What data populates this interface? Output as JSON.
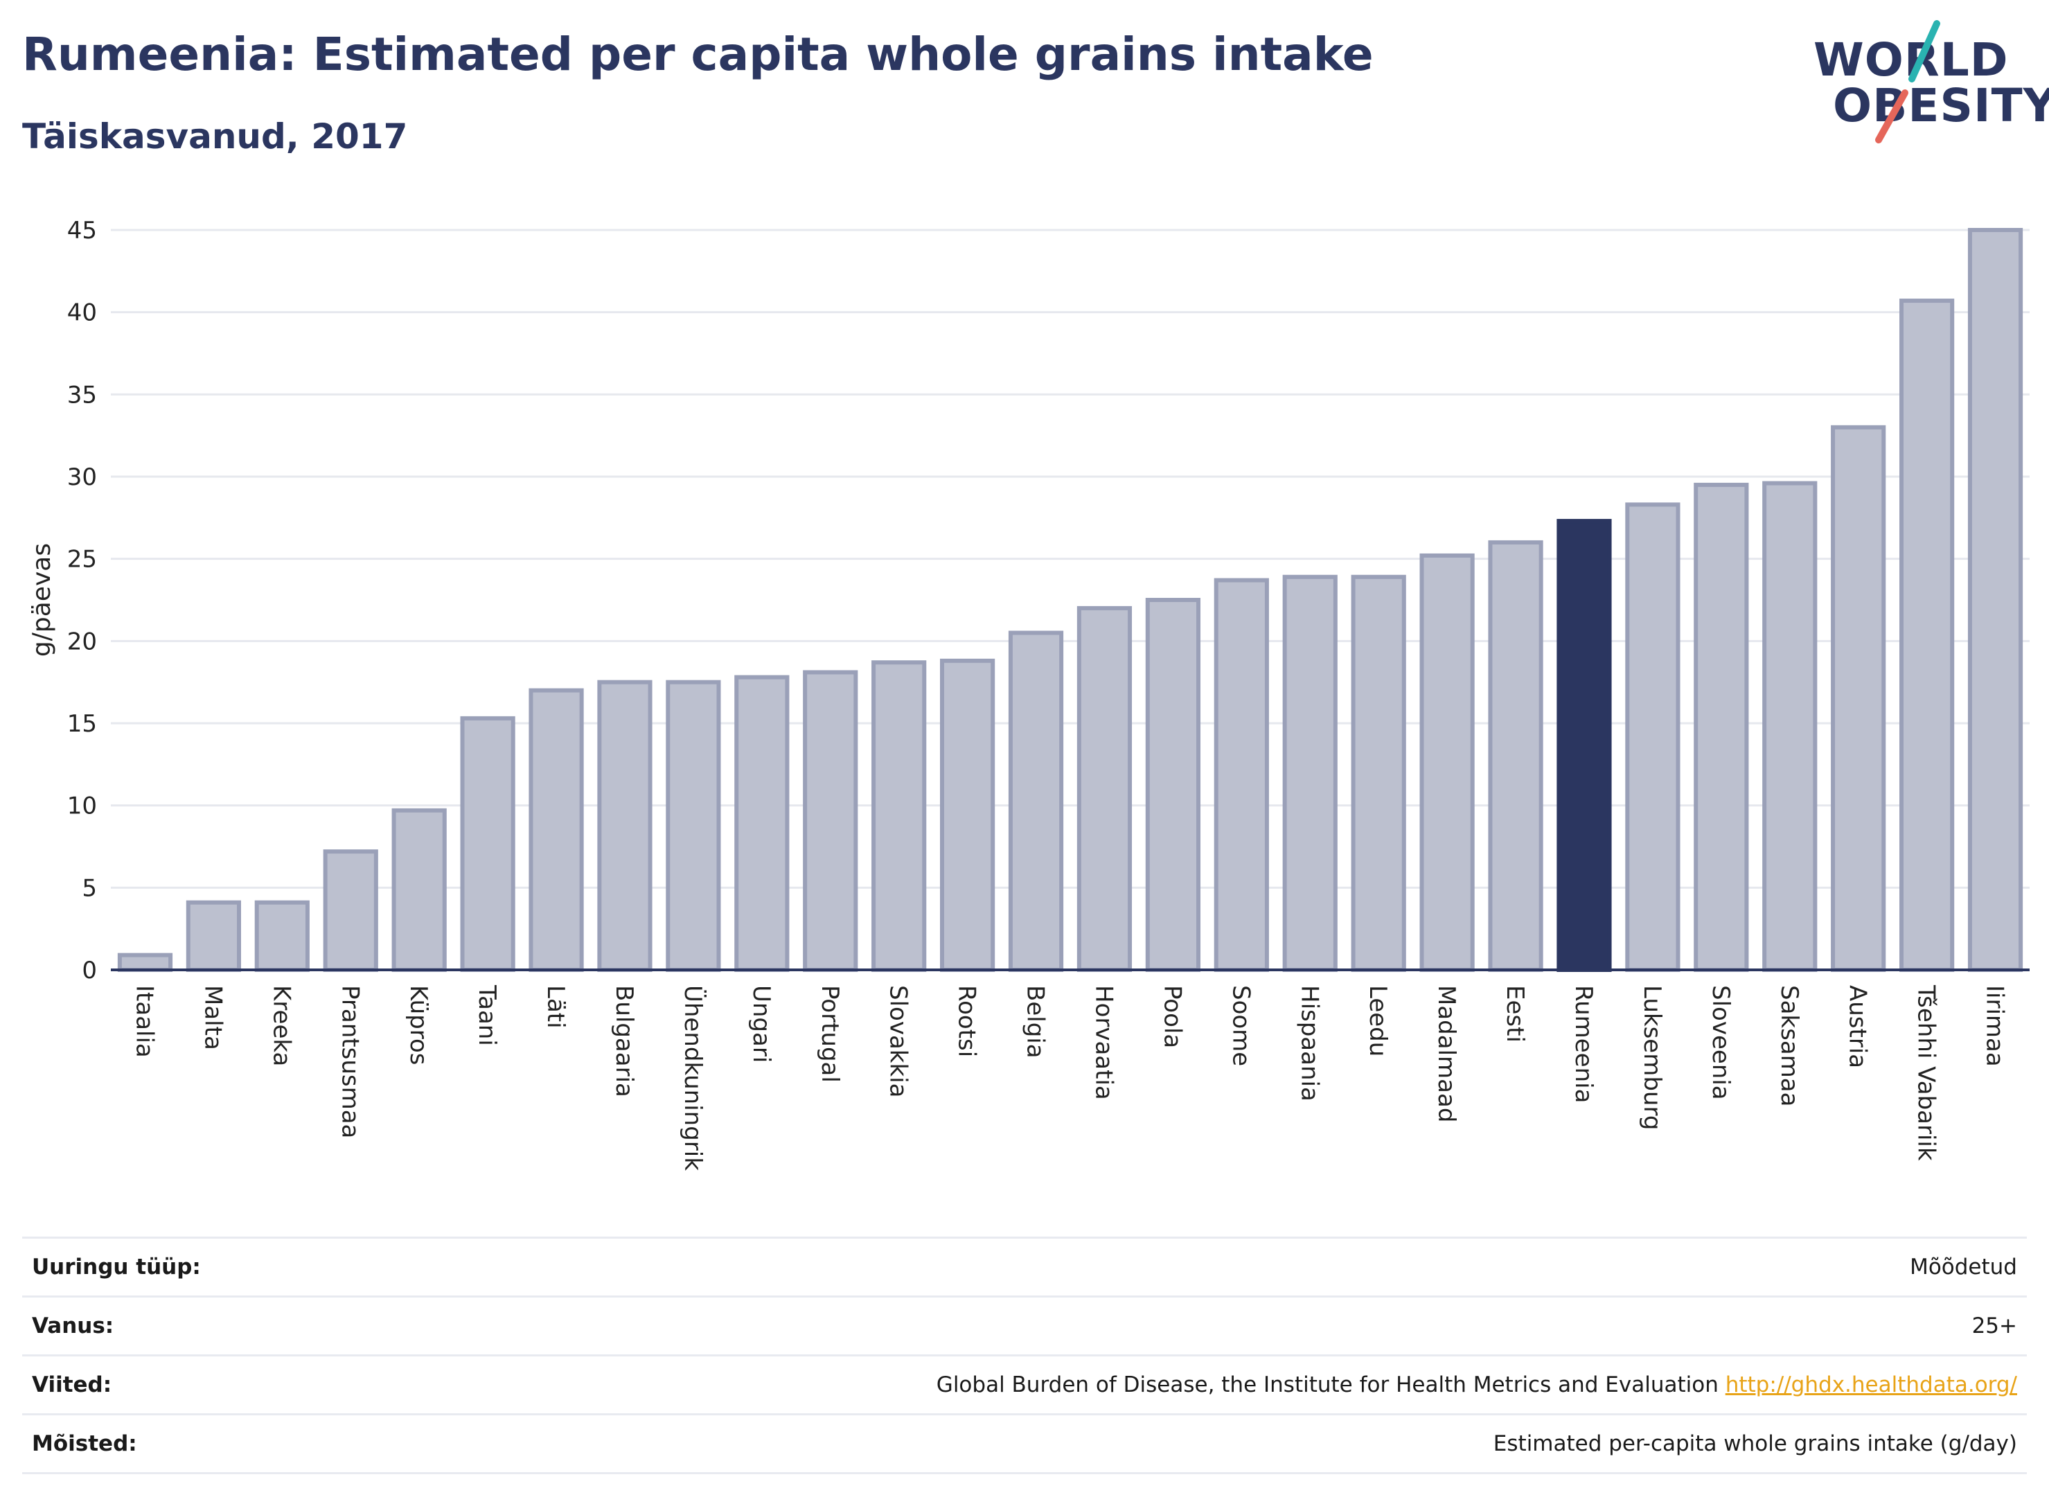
{
  "header": {
    "title": "Rumeenia: Estimated per capita whole grains intake",
    "subtitle": "Täiskasvanud, 2017"
  },
  "logo": {
    "line1": "WORLD",
    "line2": "OBESITY",
    "accent_teal": "#2ab3b1",
    "accent_red": "#e5665a"
  },
  "colors": {
    "bar": "#bcc0cf",
    "bar_border": "#9aa0b8",
    "highlight": "#2b3660",
    "axis": "#2b3660",
    "grid": "#e6e8ee"
  },
  "chart_data": {
    "type": "bar",
    "ylabel": "g/päevas",
    "ylim": [
      0,
      45
    ],
    "yticks": [
      "0",
      "5",
      "10",
      "15",
      "20",
      "25",
      "30",
      "35",
      "40",
      "45"
    ],
    "grid": true,
    "highlight": "Rumeenia",
    "categories": [
      "Itaalia",
      "Malta",
      "Kreeka",
      "Prantsusmaa",
      "Küpros",
      "Taani",
      "Läti",
      "Bulgaaria",
      "Ühendkuningrik",
      "Ungari",
      "Portugal",
      "Slovakkia",
      "Rootsi",
      "Belgia",
      "Horvaatia",
      "Poola",
      "Soome",
      "Hispaania",
      "Leedu",
      "Madalmaad",
      "Eesti",
      "Rumeenia",
      "Luksemburg",
      "Sloveenia",
      "Saksamaa",
      "Austria",
      "Tšehhi Vabariik",
      "Iirimaa"
    ],
    "values": [
      0.9,
      4.1,
      4.1,
      7.2,
      9.7,
      15.3,
      17.0,
      17.5,
      17.5,
      17.8,
      18.1,
      18.7,
      18.8,
      20.5,
      22.0,
      22.5,
      23.7,
      23.9,
      23.9,
      25.2,
      26.0,
      27.3,
      28.3,
      29.5,
      29.6,
      33.0,
      40.7,
      45.0
    ]
  },
  "info": {
    "rows": [
      {
        "label": "Uuringu tüüp:",
        "value": "Mõõdetud"
      },
      {
        "label": "Vanus:",
        "value": "25+"
      },
      {
        "label": "Viited:",
        "value": "Global Burden of Disease, the Institute for Health Metrics and Evaluation",
        "link": "http://ghdx.healthdata.org/"
      },
      {
        "label": "Mõisted:",
        "value": "Estimated per-capita whole grains intake (g/day)"
      }
    ]
  }
}
